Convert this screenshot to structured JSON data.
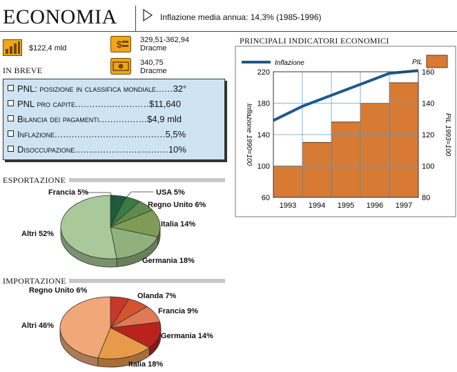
{
  "header": {
    "title": "ECONOMIA",
    "inflation_note": "Inflazione media annua: 14,3% (1985-1996)"
  },
  "stats": {
    "pil": "$122,4 mld",
    "exchange1_line1": "329,51-362,94",
    "exchange1_line2": "Dracme",
    "exchange2_line1": "340,75",
    "exchange2_line2": "Dracme"
  },
  "in_breve": {
    "heading": "IN BREVE",
    "items": [
      {
        "label": "PNL: posizione in classifica mondiale",
        "dots": "......",
        "value": "32°"
      },
      {
        "label": "PNL pro capite",
        "dots": "..........................",
        "value": "$11,640"
      },
      {
        "label": "Bilancia dei pagamenti",
        "dots": ".................",
        "value": "$4,9 mld"
      },
      {
        "label": "Inflazione",
        "dots": ".......................................",
        "value": "5,5%"
      },
      {
        "label": "Disoccupazione",
        "dots": ".................................",
        "value": "10%"
      }
    ]
  },
  "colors": {
    "box_bg": "#cfe4f3",
    "bar": "#d77a34",
    "line": "#1f5a8a",
    "grid": "#5aa0d8"
  },
  "chart_data": [
    {
      "type": "pie",
      "title": "ESPORTAZIONE",
      "labels": [
        "Francia",
        "USA",
        "Regno Unito",
        "Italia",
        "Germania",
        "Altri"
      ],
      "values": [
        5,
        5,
        6,
        14,
        18,
        52
      ],
      "label_texts": [
        "Francia 5%",
        "USA 5%",
        "Regno Unito 6%",
        "Italia 14%",
        "Germania 18%",
        "Altri 52%"
      ],
      "colors": [
        "#1f5a3a",
        "#3a7a45",
        "#5f8c4a",
        "#7e9c55",
        "#8fb27c",
        "#a9c99a"
      ]
    },
    {
      "type": "pie",
      "title": "IMPORTAZIONE",
      "labels": [
        "Regno Unito",
        "Olanda",
        "Francia",
        "Germania",
        "Italia",
        "Altri"
      ],
      "values": [
        6,
        7,
        9,
        14,
        18,
        46
      ],
      "label_texts": [
        "Regno Unito 6%",
        "Olanda 7%",
        "Francia 9%",
        "Germania 14%",
        "Italia 18%",
        "Altri 46%"
      ],
      "colors": [
        "#c8372b",
        "#d3532f",
        "#e07a55",
        "#b8231e",
        "#e89a4a",
        "#f0a878"
      ]
    },
    {
      "type": "bar",
      "title": "PRINCIPALI INDICATORI ECONOMICI",
      "categories": [
        "1993",
        "1994",
        "1995",
        "1996",
        "1997"
      ],
      "series": [
        {
          "name": "PIL",
          "type": "bar",
          "axis": "right",
          "values": [
            100,
            115,
            128,
            140,
            153
          ]
        },
        {
          "name": "Inflazione",
          "type": "line",
          "axis": "left",
          "values": [
            158,
            176,
            190,
            204,
            218
          ]
        }
      ],
      "ylabel_left": "Inflazione 1990=100",
      "ylabel_right": "PIL 1993=100",
      "yticks_left": [
        "60",
        "100",
        "140",
        "180",
        "220"
      ],
      "yticks_right": [
        "80",
        "100",
        "120",
        "140",
        "160"
      ],
      "ylim_left": [
        60,
        220
      ],
      "ylim_right": [
        80,
        160
      ],
      "grid": true
    }
  ]
}
